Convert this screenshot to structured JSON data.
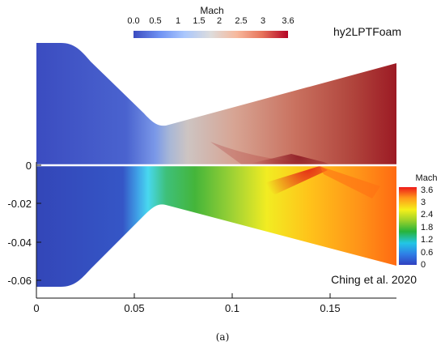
{
  "top_colorbar": {
    "title": "Mach",
    "ticks": [
      "0.0",
      "0.5",
      "1",
      "1.5",
      "2",
      "2.5",
      "3",
      "3.6"
    ],
    "colors": [
      "#3b4cc0",
      "#6f92f3",
      "#aac7fd",
      "#dddcdc",
      "#f7b89c",
      "#e7745b",
      "#b40426"
    ]
  },
  "side_colorbar": {
    "title": "Mach",
    "ticks": [
      "3.6",
      "3",
      "2.4",
      "1.8",
      "1.2",
      "0.6",
      "0"
    ],
    "colors": [
      "#3040c0",
      "#2f7fe6",
      "#22c6e6",
      "#27b33a",
      "#9bd12a",
      "#f5f01a",
      "#ff9a1a",
      "#ee1a1a"
    ]
  },
  "top_label": "hy2LPTFoam",
  "bottom_label": "Ching et al. 2020",
  "axes": {
    "x_ticks": [
      "0",
      "0.05",
      "0.1",
      "0.15"
    ],
    "y_ticks": [
      "0",
      "-0.02",
      "-0.04",
      "-0.06"
    ]
  },
  "caption": "(a)"
}
